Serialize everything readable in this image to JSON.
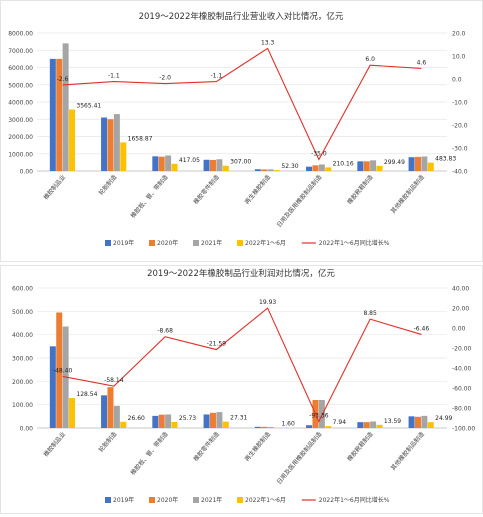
{
  "colors": {
    "y2019": "#4472c4",
    "y2020": "#ed7d31",
    "y2021": "#a5a5a5",
    "y2022h1": "#ffc000",
    "growth": "#e0302a",
    "grid": "#e6e6e6",
    "text": "#444444"
  },
  "chart_data": [
    {
      "type": "bar",
      "title": "2019～2022年橡胶制品行业营业收入对比情况，亿元",
      "categories": [
        "橡胶制品业",
        "轮胎制造",
        "橡胶板、管、带制造",
        "橡胶零件制造",
        "再生橡胶制造",
        "日用及医用橡胶制品制造",
        "橡胶靴鞋制造",
        "其他橡胶制品制造"
      ],
      "series": [
        {
          "name": "2019年",
          "values": [
            6500,
            3100,
            850,
            650,
            100,
            250,
            560,
            800
          ]
        },
        {
          "name": "2020年",
          "values": [
            6500,
            3000,
            830,
            640,
            90,
            330,
            560,
            820
          ]
        },
        {
          "name": "2021年",
          "values": [
            7400,
            3300,
            900,
            680,
            95,
            380,
            620,
            840
          ]
        },
        {
          "name": "2022年1～6月",
          "values": [
            3565.41,
            1658.87,
            417.05,
            307.0,
            52.3,
            210.16,
            299.49,
            483.83
          ]
        },
        {
          "name": "2022年1～6月同比增长%",
          "axis": "right",
          "values": [
            -2.6,
            -1.1,
            -2.0,
            -1.1,
            13.3,
            -35.0,
            6.0,
            4.6
          ]
        }
      ],
      "bar_labels": [
        "3565.41",
        "1658.87",
        "417.05",
        "307.00",
        "52.30",
        "210.16",
        "299.49",
        "483.83"
      ],
      "line_labels": [
        "-2.6",
        "-1.1",
        "-2.0",
        "-1.1",
        "13.3",
        "-35.0",
        "6.0",
        "4.6"
      ],
      "ylim_left": [
        0,
        8000
      ],
      "ytick_left": [
        "0.00",
        "1000.00",
        "2000.00",
        "3000.00",
        "4000.00",
        "5000.00",
        "6000.00",
        "7000.00",
        "8000.00"
      ],
      "ylim_right": [
        -40,
        20
      ],
      "ytick_right": [
        "20.0",
        "10.0",
        "0.0",
        "-10.0",
        "-20.0",
        "-30.0",
        "-40.0"
      ],
      "legend": [
        "2019年",
        "2020年",
        "2021年",
        "2022年1～6月",
        "2022年1～6月同比增长%"
      ],
      "legend_position": "bottom",
      "grid": true
    },
    {
      "type": "bar",
      "title": "2019～2022年橡胶制品行业利润对比情况，亿元",
      "categories": [
        "橡胶制品业",
        "轮胎制造",
        "橡胶板、管、带制造",
        "橡胶零件制造",
        "再生橡胶制造",
        "日用及医用橡胶制品制造",
        "橡胶靴鞋制造",
        "其他橡胶制品制造"
      ],
      "series": [
        {
          "name": "2019年",
          "values": [
            350,
            140,
            52,
            58,
            5,
            12,
            25,
            50
          ]
        },
        {
          "name": "2020年",
          "values": [
            495,
            175,
            57,
            65,
            5,
            120,
            25,
            48
          ]
        },
        {
          "name": "2021年",
          "values": [
            435,
            95,
            58,
            68,
            4,
            120,
            28,
            52
          ]
        },
        {
          "name": "2022年1～6月",
          "values": [
            128.54,
            26.6,
            25.73,
            27.31,
            1.6,
            7.94,
            13.59,
            24.99
          ]
        },
        {
          "name": "2022年1～6月同比增长%",
          "axis": "right",
          "values": [
            -48.4,
            -58.14,
            -8.68,
            -21.59,
            19.93,
            -93.36,
            8.85,
            -6.46
          ]
        }
      ],
      "bar_labels": [
        "128.54",
        "26.60",
        "25.73",
        "27.31",
        "1.60",
        "7.94",
        "13.59",
        "24.99"
      ],
      "line_labels": [
        "-48.40",
        "-58.14",
        "-8.68",
        "-21.59",
        "19.93",
        "-93.36",
        "8.85",
        "-6.46"
      ],
      "ylim_left": [
        0,
        600
      ],
      "ytick_left": [
        "0.00",
        "100.00",
        "200.00",
        "300.00",
        "400.00",
        "500.00",
        "600.00"
      ],
      "ylim_right": [
        -100,
        40
      ],
      "ytick_right": [
        "40.00",
        "20.00",
        "0.00",
        "-20.00",
        "-40.00",
        "-60.00",
        "-80.00",
        "-100.00"
      ],
      "legend": [
        "2019年",
        "2020年",
        "2021年",
        "2022年1～6月",
        "2022年1～6月同比增长%"
      ],
      "legend_position": "bottom",
      "grid": true
    }
  ]
}
